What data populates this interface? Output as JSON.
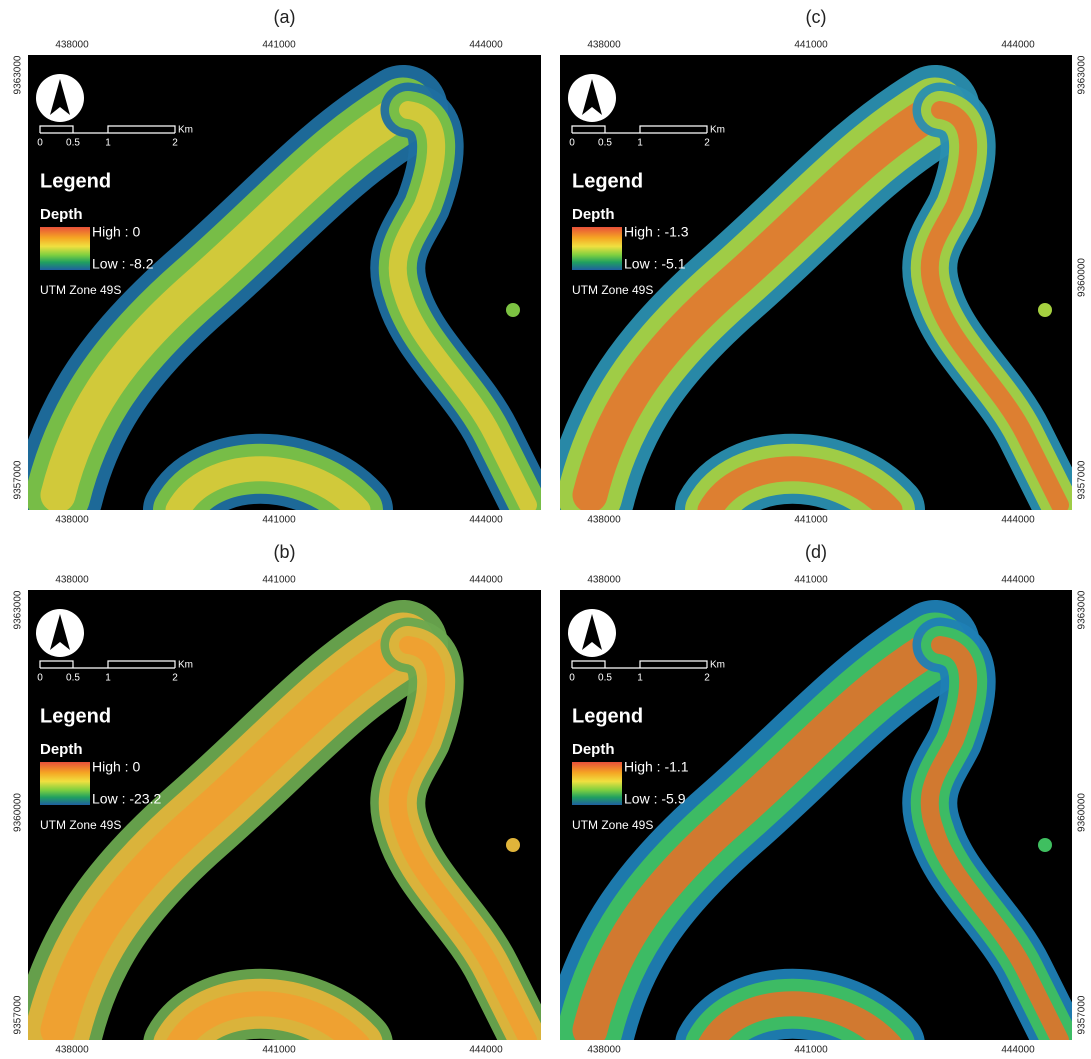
{
  "panels": [
    {
      "label": "(a)",
      "x_ticks_top": [
        438000,
        441000,
        444000
      ],
      "x_ticks_bottom": [
        438000,
        441000,
        444000
      ],
      "y_ticks": [
        9363000,
        9357000
      ],
      "scale_labels": [
        "0",
        "0.5",
        "1",
        "2"
      ],
      "scale_unit": "Km",
      "legend": {
        "title": "Legend",
        "field": "Depth",
        "high": "High : 0",
        "low": "Low : -8.2"
      },
      "projection": "UTM Zone 49S"
    },
    {
      "label": "(c)",
      "x_ticks_top": [
        438000,
        441000,
        444000
      ],
      "x_ticks_bottom": [
        438000,
        441000,
        444000
      ],
      "y_ticks": [
        9363000,
        9360000,
        9357000
      ],
      "scale_labels": [
        "0",
        "0.5",
        "1",
        "2"
      ],
      "scale_unit": "Km",
      "legend": {
        "title": "Legend",
        "field": "Depth",
        "high": "High : -1.3",
        "low": "Low : -5.1"
      },
      "projection": "UTM Zone 49S"
    },
    {
      "label": "(b)",
      "x_ticks_top": [
        438000,
        441000,
        444000
      ],
      "x_ticks_bottom": [
        438000,
        441000,
        444000
      ],
      "y_ticks": [
        9363000,
        9360000,
        9357000
      ],
      "scale_labels": [
        "0",
        "0.5",
        "1",
        "2"
      ],
      "scale_unit": "Km",
      "legend": {
        "title": "Legend",
        "field": "Depth",
        "high": "High : 0",
        "low": "Low : -23.2"
      },
      "projection": "UTM Zone 49S"
    },
    {
      "label": "(d)",
      "x_ticks_top": [
        438000,
        441000,
        444000
      ],
      "x_ticks_bottom": [
        438000,
        441000,
        444000
      ],
      "y_ticks": [
        9363000,
        9360000,
        9357000
      ],
      "scale_labels": [
        "0",
        "0.5",
        "1",
        "2"
      ],
      "scale_unit": "Km",
      "legend": {
        "title": "Legend",
        "field": "Depth",
        "high": "High : -1.1",
        "low": "Low : -5.9"
      },
      "projection": "UTM Zone 49S"
    }
  ]
}
